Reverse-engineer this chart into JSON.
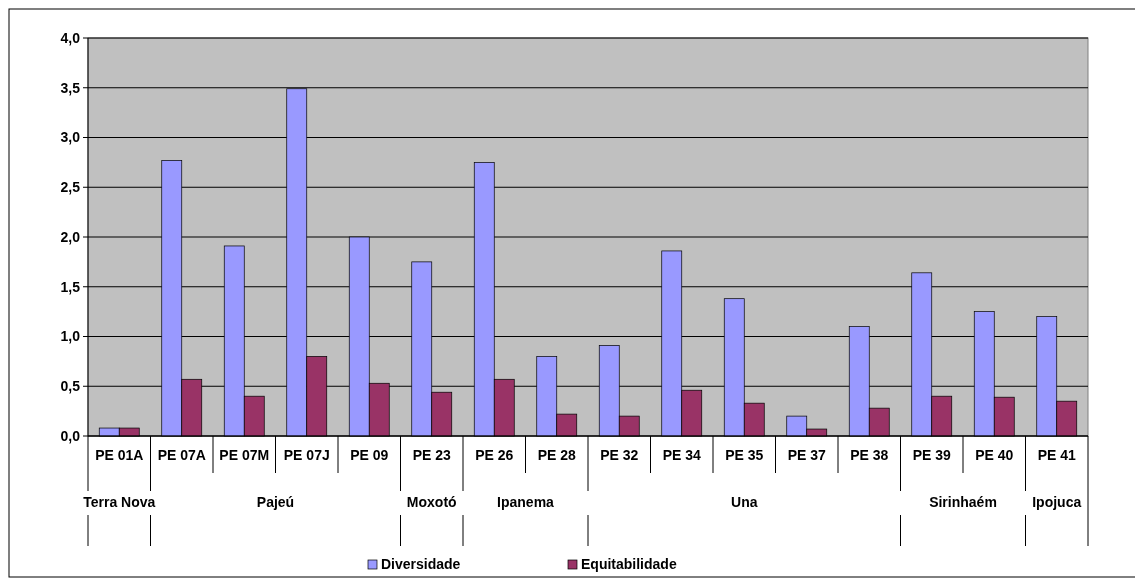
{
  "chart_data": {
    "type": "bar",
    "categories": [
      "PE 01A",
      "PE 07A",
      "PE 07M",
      "PE 07J",
      "PE 09",
      "PE 23",
      "PE 26",
      "PE 28",
      "PE 32",
      "PE 34",
      "PE 35",
      "PE 37",
      "PE 38",
      "PE 39",
      "PE 40",
      "PE 41"
    ],
    "series": [
      {
        "name": "Diversidade",
        "color": "#9999ff",
        "values": [
          0.08,
          2.77,
          1.91,
          3.49,
          2.0,
          1.75,
          2.75,
          0.8,
          0.91,
          1.86,
          1.38,
          0.2,
          1.1,
          1.64,
          1.25,
          1.2
        ]
      },
      {
        "name": "Equitabilidade",
        "color": "#993366",
        "values": [
          0.08,
          0.57,
          0.4,
          0.8,
          0.53,
          0.44,
          0.57,
          0.22,
          0.2,
          0.46,
          0.33,
          0.07,
          0.28,
          0.4,
          0.39,
          0.35
        ]
      }
    ],
    "ylim": [
      0,
      4
    ],
    "yticks": [
      {
        "value": 0,
        "label": "0,0"
      },
      {
        "value": 0.5,
        "label": "0,5"
      },
      {
        "value": 1,
        "label": "1,0"
      },
      {
        "value": 1.5,
        "label": "1,5"
      },
      {
        "value": 2,
        "label": "2,0"
      },
      {
        "value": 2.5,
        "label": "2,5"
      },
      {
        "value": 3,
        "label": "3,0"
      },
      {
        "value": 3.5,
        "label": "3,5"
      },
      {
        "value": 4,
        "label": "4,0"
      }
    ],
    "grid": "y",
    "legend": "bottom",
    "annotations": [
      "Terra Nova",
      "Pajeú",
      "Moxotó",
      "Ipanema",
      "Una",
      "Sirinhaém",
      "Ipojuca"
    ]
  }
}
